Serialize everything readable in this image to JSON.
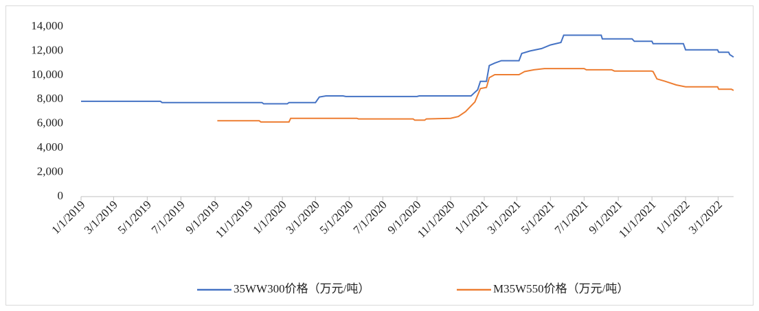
{
  "chart_data": {
    "type": "line",
    "xlim": [
      "1/1/2019",
      "3/29/2022"
    ],
    "xticks": [
      "1/1/2019",
      "3/1/2019",
      "5/1/2019",
      "7/1/2019",
      "9/1/2019",
      "11/1/2019",
      "1/1/2020",
      "3/1/2020",
      "5/1/2020",
      "7/1/2020",
      "9/1/2020",
      "11/1/2020",
      "1/1/2021",
      "3/1/2021",
      "5/1/2021",
      "7/1/2021",
      "9/1/2021",
      "11/1/2021",
      "1/1/2022",
      "3/1/2022"
    ],
    "ylim": [
      0,
      14000
    ],
    "yticks": [
      0,
      {
        "value": 2000,
        "label": "2,000"
      },
      {
        "value": 4000,
        "label": "4,000"
      },
      {
        "value": 6000,
        "label": "6,000"
      },
      {
        "value": 8000,
        "label": "8,000"
      },
      {
        "value": 10000,
        "label": "10,000"
      },
      {
        "value": 12000,
        "label": "12,000"
      },
      {
        "value": 14000,
        "label": "14,000"
      }
    ],
    "grid": false,
    "legend": "bottom",
    "series": [
      {
        "name": "35WW300价格（万元/吨）",
        "color": "#4472c4",
        "x": [
          "1/1/2019",
          "5/25/2019",
          "5/28/2019",
          "11/25/2019",
          "11/28/2019",
          "1/10/2020",
          "1/13/2020",
          "3/1/2020",
          "3/8/2020",
          "3/20/2020",
          "4/20/2020",
          "4/25/2020",
          "9/1/2020",
          "9/5/2020",
          "12/8/2020",
          "12/15/2020",
          "12/20/2020",
          "12/25/2020",
          "1/5/2021",
          "1/10/2021",
          "1/20/2021",
          "2/1/2021",
          "3/5/2021",
          "3/10/2021",
          "3/25/2021",
          "4/15/2021",
          "5/1/2021",
          "5/20/2021",
          "5/25/2021",
          "8/1/2021",
          "8/3/2021",
          "9/26/2021",
          "9/30/2021",
          "11/1/2021",
          "11/3/2021",
          "12/28/2021",
          "1/1/2022",
          "2/28/2022",
          "3/2/2022",
          "3/20/2022",
          "3/22/2022",
          "3/29/2022"
        ],
        "values": [
          7850,
          7850,
          7750,
          7750,
          7650,
          7650,
          7750,
          7750,
          8200,
          8300,
          8300,
          8250,
          8250,
          8300,
          8300,
          8600,
          8800,
          9500,
          9500,
          10800,
          11000,
          11200,
          11200,
          11800,
          12000,
          12200,
          12500,
          12700,
          13300,
          13300,
          13000,
          13000,
          12800,
          12800,
          12600,
          12600,
          12100,
          12100,
          11900,
          11900,
          11700,
          11500
        ]
      },
      {
        "name": "M35W550价格（万元/吨）",
        "color": "#ed7d31",
        "x": [
          "9/5/2019",
          "11/20/2019",
          "11/23/2019",
          "1/13/2020",
          "1/16/2020",
          "5/15/2020",
          "5/18/2020",
          "8/25/2020",
          "8/28/2020",
          "9/15/2020",
          "9/18/2020",
          "11/1/2020",
          "11/15/2020",
          "11/28/2020",
          "12/15/2020",
          "12/25/2020",
          "1/5/2021",
          "1/10/2021",
          "1/20/2021",
          "3/5/2021",
          "3/15/2021",
          "4/1/2021",
          "4/20/2021",
          "7/1/2021",
          "7/5/2021",
          "8/20/2021",
          "8/25/2021",
          "10/31/2021",
          "11/3/2021",
          "11/10/2021",
          "11/25/2021",
          "12/15/2021",
          "1/1/2022",
          "2/28/2022",
          "3/2/2022",
          "3/25/2022",
          "3/29/2022"
        ],
        "values": [
          6250,
          6250,
          6150,
          6150,
          6450,
          6450,
          6400,
          6400,
          6300,
          6300,
          6400,
          6450,
          6600,
          7000,
          7800,
          8900,
          9000,
          9800,
          10050,
          10050,
          10300,
          10450,
          10550,
          10550,
          10450,
          10450,
          10350,
          10350,
          10300,
          9700,
          9500,
          9200,
          9050,
          9050,
          8850,
          8850,
          8750
        ]
      }
    ]
  }
}
